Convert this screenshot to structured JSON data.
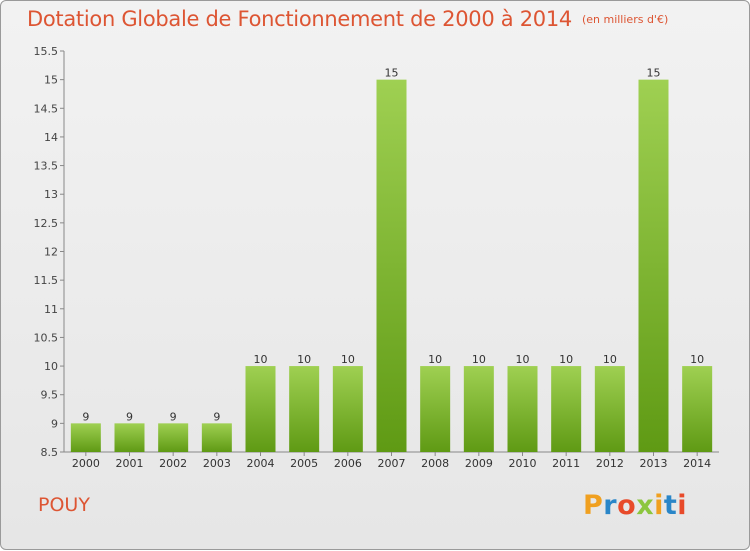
{
  "header": {
    "title": "Dotation Globale de Fonctionnement de 2000 à 2014",
    "unit": "(en milliers d'€)"
  },
  "footer": {
    "commune": "POUY",
    "logo_text": "Proxiti",
    "logo_colors": [
      "#f0a020",
      "#2a86c8",
      "#e84a2a",
      "#8cc63e",
      "#f0a020",
      "#2a86c8",
      "#e84a2a"
    ]
  },
  "colors": {
    "title": "#dd5533",
    "bar_light": "#9fd052",
    "bar_dark": "#5f9a14"
  },
  "chart_data": {
    "type": "bar",
    "title": "Dotation Globale de Fonctionnement de 2000 à 2014",
    "subtitle": "(en milliers d'€)",
    "categories": [
      "2000",
      "2001",
      "2002",
      "2003",
      "2004",
      "2005",
      "2006",
      "2007",
      "2008",
      "2009",
      "2010",
      "2011",
      "2012",
      "2013",
      "2014"
    ],
    "values": [
      9,
      9,
      9,
      9,
      10,
      10,
      10,
      15,
      10,
      10,
      10,
      10,
      10,
      15,
      10
    ],
    "data_labels": [
      "9",
      "9",
      "9",
      "9",
      "10",
      "10",
      "10",
      "15",
      "10",
      "10",
      "10",
      "10",
      "10",
      "15",
      "10"
    ],
    "ylim": [
      8.5,
      15.5
    ],
    "yticks": [
      "8.5",
      "9",
      "9.5",
      "10",
      "10.5",
      "11",
      "11.5",
      "12",
      "12.5",
      "13",
      "13.5",
      "14",
      "14.5",
      "15",
      "15.5"
    ],
    "grid": false,
    "legend": "none"
  }
}
